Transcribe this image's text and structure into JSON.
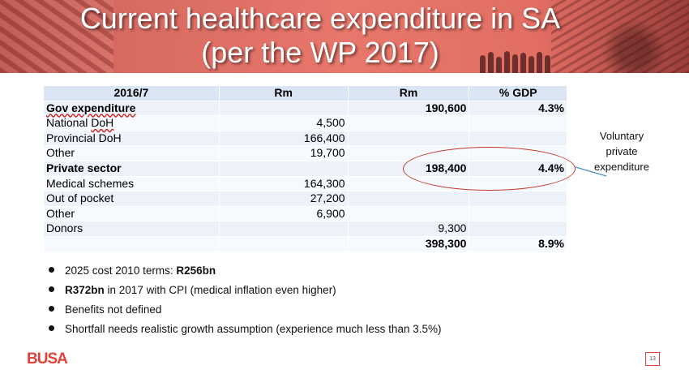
{
  "slide": {
    "title_line1": "Current healthcare expenditure in SA",
    "title_line2": "(per the WP 2017)",
    "page_number": "13",
    "logo_text": "BUSA"
  },
  "table": {
    "headers": [
      "2016/7",
      "Rm",
      "Rm",
      "% GDP"
    ],
    "rows": [
      {
        "label": "Gov expenditure",
        "rm_detail": "",
        "rm_total": "190,600",
        "pct_gdp": "4.3%",
        "bold": true
      },
      {
        "label": "National DoH",
        "rm_detail": "4,500",
        "rm_total": "",
        "pct_gdp": ""
      },
      {
        "label": "Provincial DoH",
        "rm_detail": "166,400",
        "rm_total": "",
        "pct_gdp": ""
      },
      {
        "label": "Other",
        "rm_detail": "19,700",
        "rm_total": "",
        "pct_gdp": ""
      },
      {
        "label": "Private sector",
        "rm_detail": "",
        "rm_total": "198,400",
        "pct_gdp": "4.4%",
        "bold": true
      },
      {
        "label": "Medical schemes",
        "rm_detail": "164,300",
        "rm_total": "",
        "pct_gdp": ""
      },
      {
        "label": "Out of pocket",
        "rm_detail": "27,200",
        "rm_total": "",
        "pct_gdp": ""
      },
      {
        "label": "Other",
        "rm_detail": "6,900",
        "rm_total": "",
        "pct_gdp": ""
      },
      {
        "label": "Donors",
        "rm_detail": "",
        "rm_total": "9,300",
        "pct_gdp": ""
      },
      {
        "label": "",
        "rm_detail": "",
        "rm_total": "398,300",
        "pct_gdp": "8.9%",
        "bold": true
      }
    ]
  },
  "annotation": {
    "line1": "Voluntary",
    "line2": "private",
    "line3": "expenditure"
  },
  "bullets": [
    {
      "pre": "2025 cost 2010 terms: ",
      "bold": "R256bn",
      "post": ""
    },
    {
      "pre": "",
      "bold": "R372bn",
      "post": " in 2017 with CPI (medical inflation even higher)"
    },
    {
      "pre": "Benefits not defined",
      "bold": "",
      "post": ""
    },
    {
      "pre": "Shortfall needs realistic growth assumption (experience much less than 3.5%)",
      "bold": "",
      "post": ""
    }
  ],
  "colors": {
    "accent": "#e0433a",
    "table_header": "#dbe5f3",
    "table_row": "#edf2fa",
    "ellipse": "#c0392b",
    "pointer_line": "#4a90c2"
  }
}
